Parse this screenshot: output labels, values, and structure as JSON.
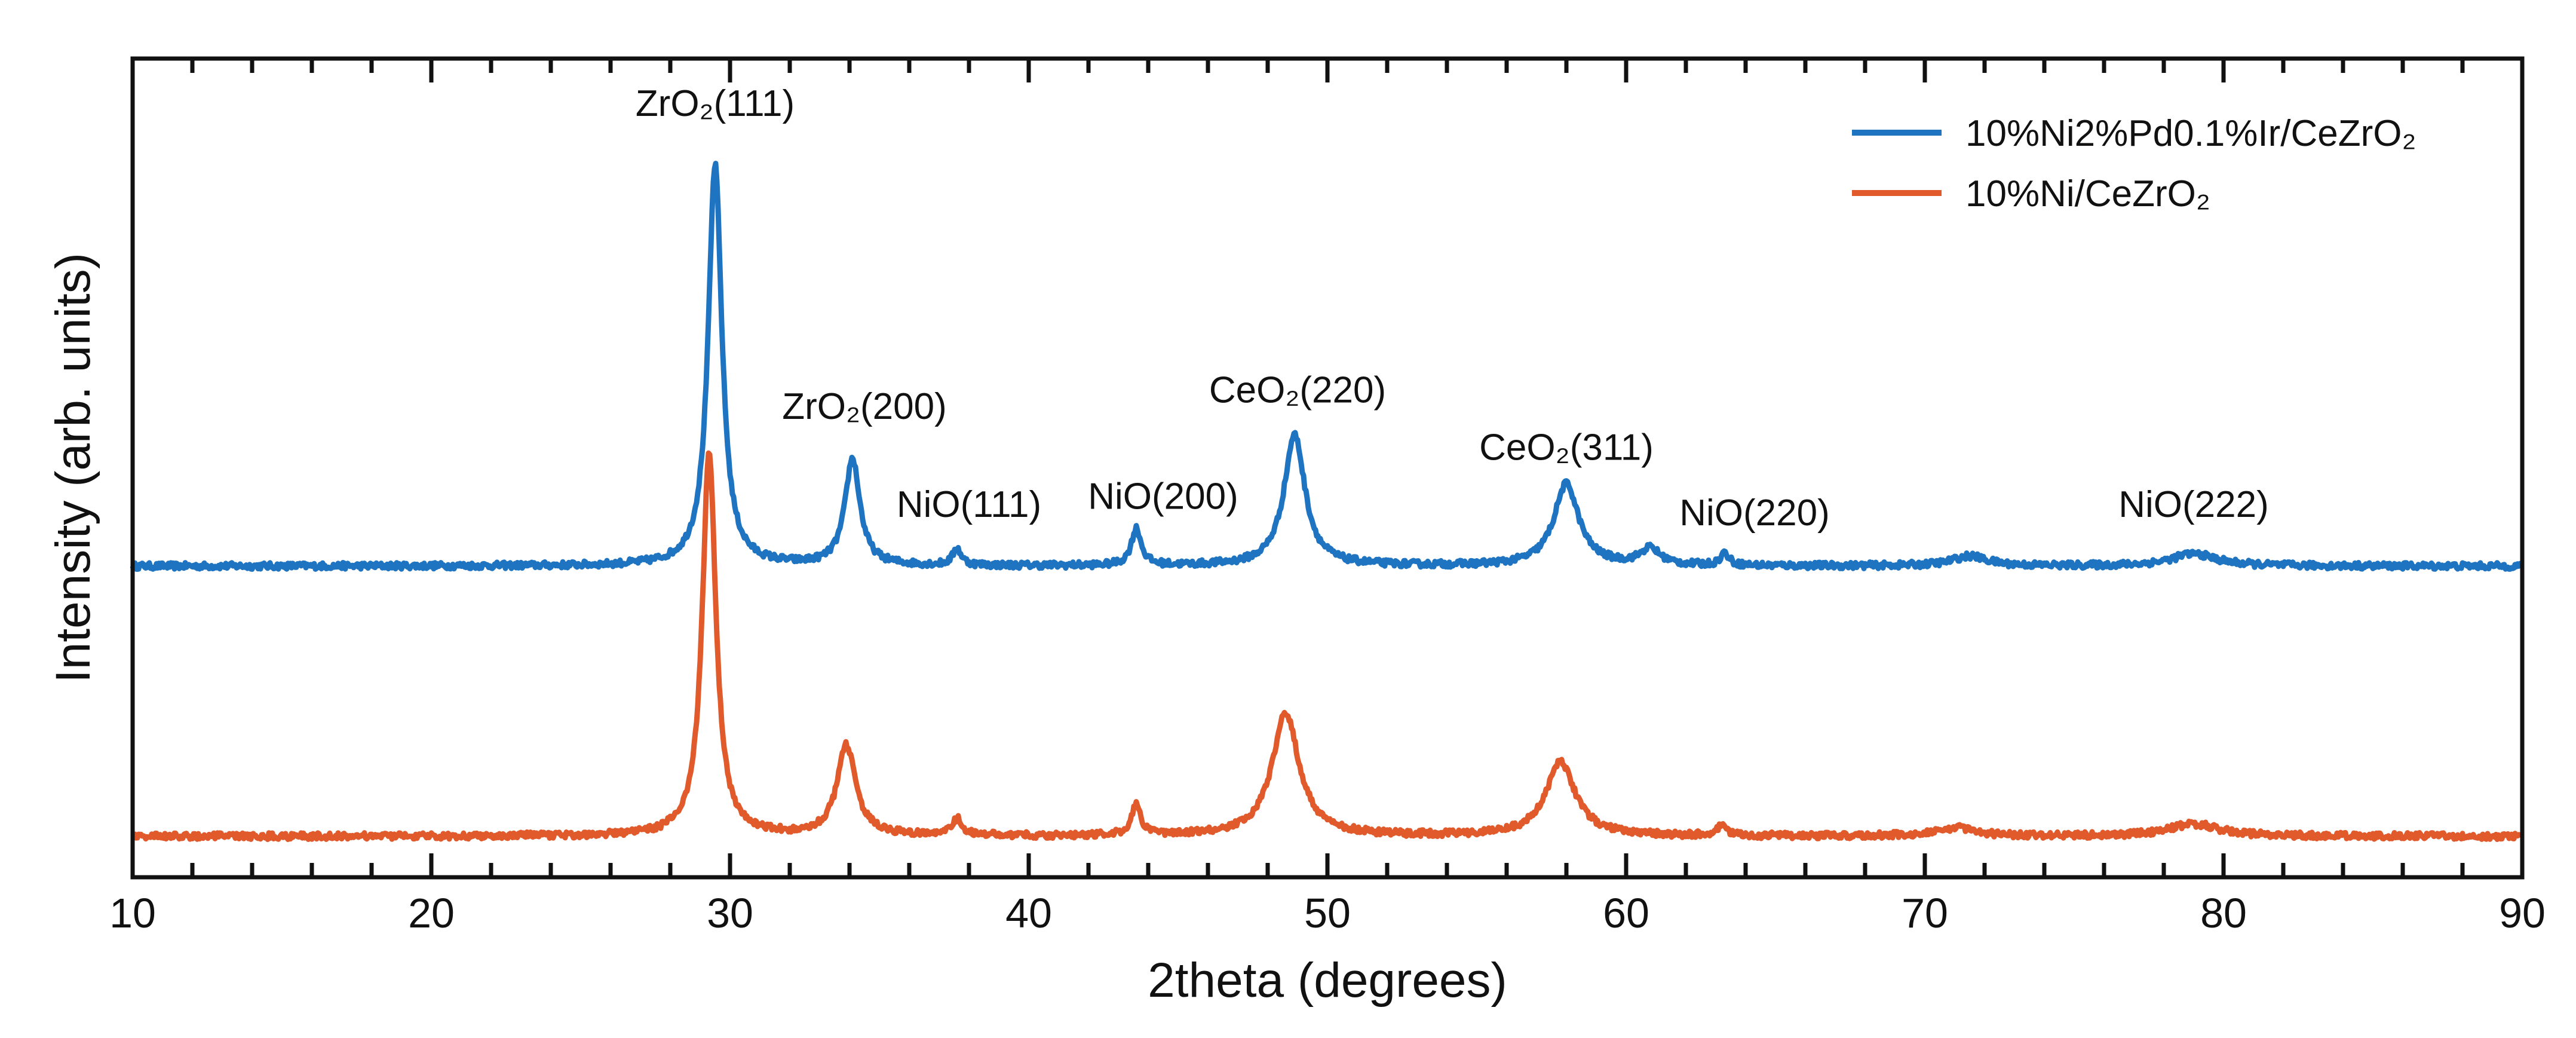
{
  "chart_data": {
    "type": "line",
    "title": "",
    "xlabel": "2theta (degrees)",
    "ylabel": "Intensity (arb. units)",
    "xlim": [
      10,
      90
    ],
    "ylim": [
      0,
      1
    ],
    "y_ticks_labeled": false,
    "x_ticks": [
      10,
      20,
      30,
      40,
      50,
      60,
      70,
      80,
      90
    ],
    "x_tick_labels": [
      "10",
      "20",
      "30",
      "40",
      "50",
      "60",
      "70",
      "80",
      "90"
    ],
    "legend_position": "top-right",
    "series": [
      {
        "name": "10%Ni2%Pd0.1%Ir/CeZrO₂",
        "color": "#1f74c1",
        "baseline": 0.38,
        "peaks": [
          {
            "x": 29.5,
            "height": 0.49,
            "width": 0.55
          },
          {
            "x": 34.1,
            "height": 0.13,
            "width": 0.6
          },
          {
            "x": 37.6,
            "height": 0.02,
            "width": 0.35
          },
          {
            "x": 43.6,
            "height": 0.045,
            "width": 0.4
          },
          {
            "x": 48.9,
            "height": 0.16,
            "width": 0.85
          },
          {
            "x": 58.0,
            "height": 0.1,
            "width": 1.0
          },
          {
            "x": 60.8,
            "height": 0.02,
            "width": 0.8
          },
          {
            "x": 63.3,
            "height": 0.015,
            "width": 0.35
          },
          {
            "x": 71.5,
            "height": 0.012,
            "width": 1.4
          },
          {
            "x": 79.0,
            "height": 0.015,
            "width": 1.8
          }
        ]
      },
      {
        "name": "10%Ni/CeZrO₂",
        "color": "#e05a2b",
        "baseline": 0.05,
        "peaks": [
          {
            "x": 29.3,
            "height": 0.47,
            "width": 0.55
          },
          {
            "x": 33.9,
            "height": 0.11,
            "width": 0.75
          },
          {
            "x": 37.6,
            "height": 0.02,
            "width": 0.4
          },
          {
            "x": 43.6,
            "height": 0.04,
            "width": 0.35
          },
          {
            "x": 48.6,
            "height": 0.15,
            "width": 1.1
          },
          {
            "x": 57.8,
            "height": 0.09,
            "width": 1.2
          },
          {
            "x": 63.2,
            "height": 0.012,
            "width": 0.35
          },
          {
            "x": 71.0,
            "height": 0.01,
            "width": 1.6
          },
          {
            "x": 79.0,
            "height": 0.015,
            "width": 2.0
          }
        ]
      }
    ],
    "annotations": [
      {
        "text": "ZrO₂(111)",
        "x": 29.5,
        "y": 0.93
      },
      {
        "text": "ZrO₂(200)",
        "x": 34.5,
        "y": 0.56
      },
      {
        "text": "NiO(111)",
        "x": 38.0,
        "y": 0.44
      },
      {
        "text": "NiO(200)",
        "x": 44.5,
        "y": 0.45
      },
      {
        "text": "CeO₂(220)",
        "x": 49.0,
        "y": 0.58
      },
      {
        "text": "CeO₂(311)",
        "x": 58.0,
        "y": 0.51
      },
      {
        "text": "NiO(220)",
        "x": 64.3,
        "y": 0.43
      },
      {
        "text": "NiO(222)",
        "x": 79.0,
        "y": 0.44
      }
    ]
  }
}
